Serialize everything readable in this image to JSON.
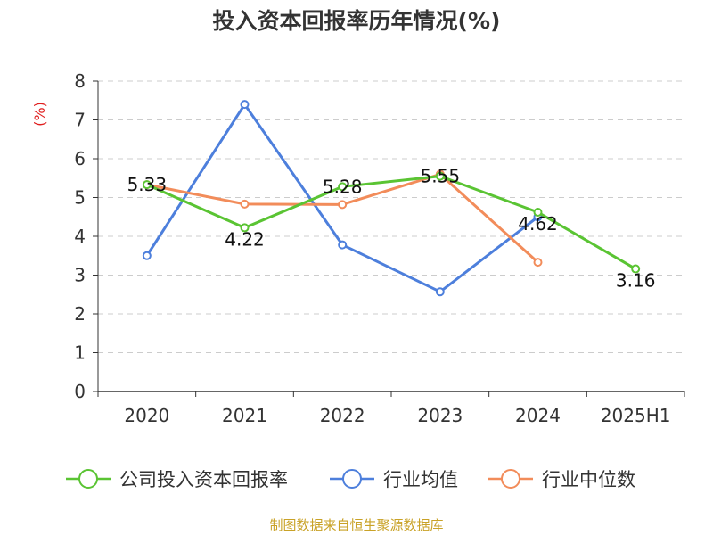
{
  "title": "投入资本回报率历年情况(%)",
  "source": "制图数据来自恒生聚源数据库",
  "colors": {
    "company": "#5ac433",
    "industry_avg": "#4d7fdc",
    "industry_median": "#f28c5a",
    "unit": "#e02020",
    "grid": "#cccccc",
    "axis": "#333333",
    "source": "#c9a227"
  },
  "chart_data": {
    "type": "line",
    "title": "投入资本回报率历年情况(%)",
    "ylabel": "(%)",
    "xlabel": "",
    "categories": [
      "2020",
      "2021",
      "2022",
      "2023",
      "2024",
      "2025H1"
    ],
    "ylim": [
      0,
      8
    ],
    "yticks": [
      0,
      1,
      2,
      3,
      4,
      5,
      6,
      7,
      8
    ],
    "grid": true,
    "legend_position": "bottom",
    "series": [
      {
        "name": "公司投入资本回报率",
        "color_key": "company",
        "values": [
          5.33,
          4.22,
          5.28,
          5.55,
          4.62,
          3.16
        ],
        "labels": [
          "5.33",
          "4.22",
          "5.28",
          "5.55",
          "4.62",
          "3.16"
        ]
      },
      {
        "name": "行业均值",
        "color_key": "industry_avg",
        "values": [
          3.5,
          7.4,
          3.78,
          2.57,
          4.5,
          null
        ]
      },
      {
        "name": "行业中位数",
        "color_key": "industry_median",
        "values": [
          5.33,
          4.83,
          4.82,
          5.6,
          3.33,
          null
        ]
      }
    ]
  }
}
